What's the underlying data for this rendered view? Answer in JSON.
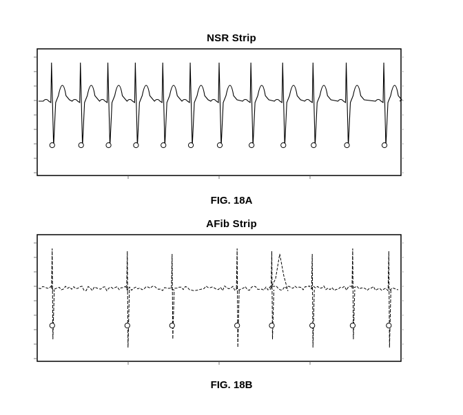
{
  "figures": [
    {
      "caption": "FIG. 18A"
    },
    {
      "caption": "FIG. 18B"
    }
  ],
  "chart_data": [
    {
      "type": "line",
      "title": "NSR Strip",
      "xlabel": "",
      "ylabel": "",
      "grid": false,
      "line_style": "solid",
      "beat_marker": "open-circle",
      "beats": [
        0.4,
        1.4,
        2.35,
        3.3,
        4.25,
        5.2,
        6.2,
        7.3,
        8.4,
        9.45,
        10.6,
        11.9
      ]
    },
    {
      "type": "line",
      "title": "AFib Strip",
      "xlabel": "",
      "ylabel": "",
      "grid": false,
      "line_style": "dashed",
      "beat_marker": "open-circle",
      "beats": [
        0.4,
        3.0,
        4.55,
        6.8,
        8.0,
        9.4,
        10.8,
        12.05
      ]
    }
  ]
}
